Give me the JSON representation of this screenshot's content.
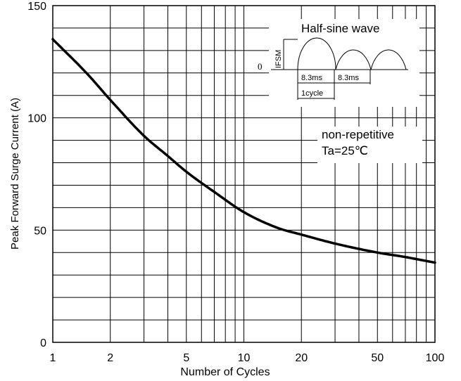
{
  "chart_data": {
    "type": "line",
    "title": "",
    "xlabel": "Number of Cycles",
    "ylabel": "Peak Forward Surge Current (A)",
    "x_scale": "log",
    "xlim": [
      1,
      100
    ],
    "ylim": [
      0,
      150
    ],
    "x_ticks": [
      1,
      2,
      5,
      10,
      20,
      50,
      100
    ],
    "y_ticks": [
      0,
      50,
      100,
      150
    ],
    "grid": true,
    "series": [
      {
        "x": [
          1,
          1.5,
          2,
          3,
          4,
          5,
          7,
          10,
          15,
          20,
          30,
          50,
          70,
          100
        ],
        "y": [
          135,
          120,
          108,
          92,
          83,
          76,
          67,
          58,
          51,
          48,
          44,
          40,
          38,
          35.5
        ]
      }
    ],
    "annotations": {
      "condition_line1": "non-repetitive",
      "condition_line2": "Ta=25℃"
    },
    "inset": {
      "title": "Half-sine wave",
      "ifsm_label": "IFSM",
      "zero_label": "0",
      "period1": "8.3ms",
      "period2": "8.3ms",
      "cycle_label": "1cycle"
    }
  }
}
